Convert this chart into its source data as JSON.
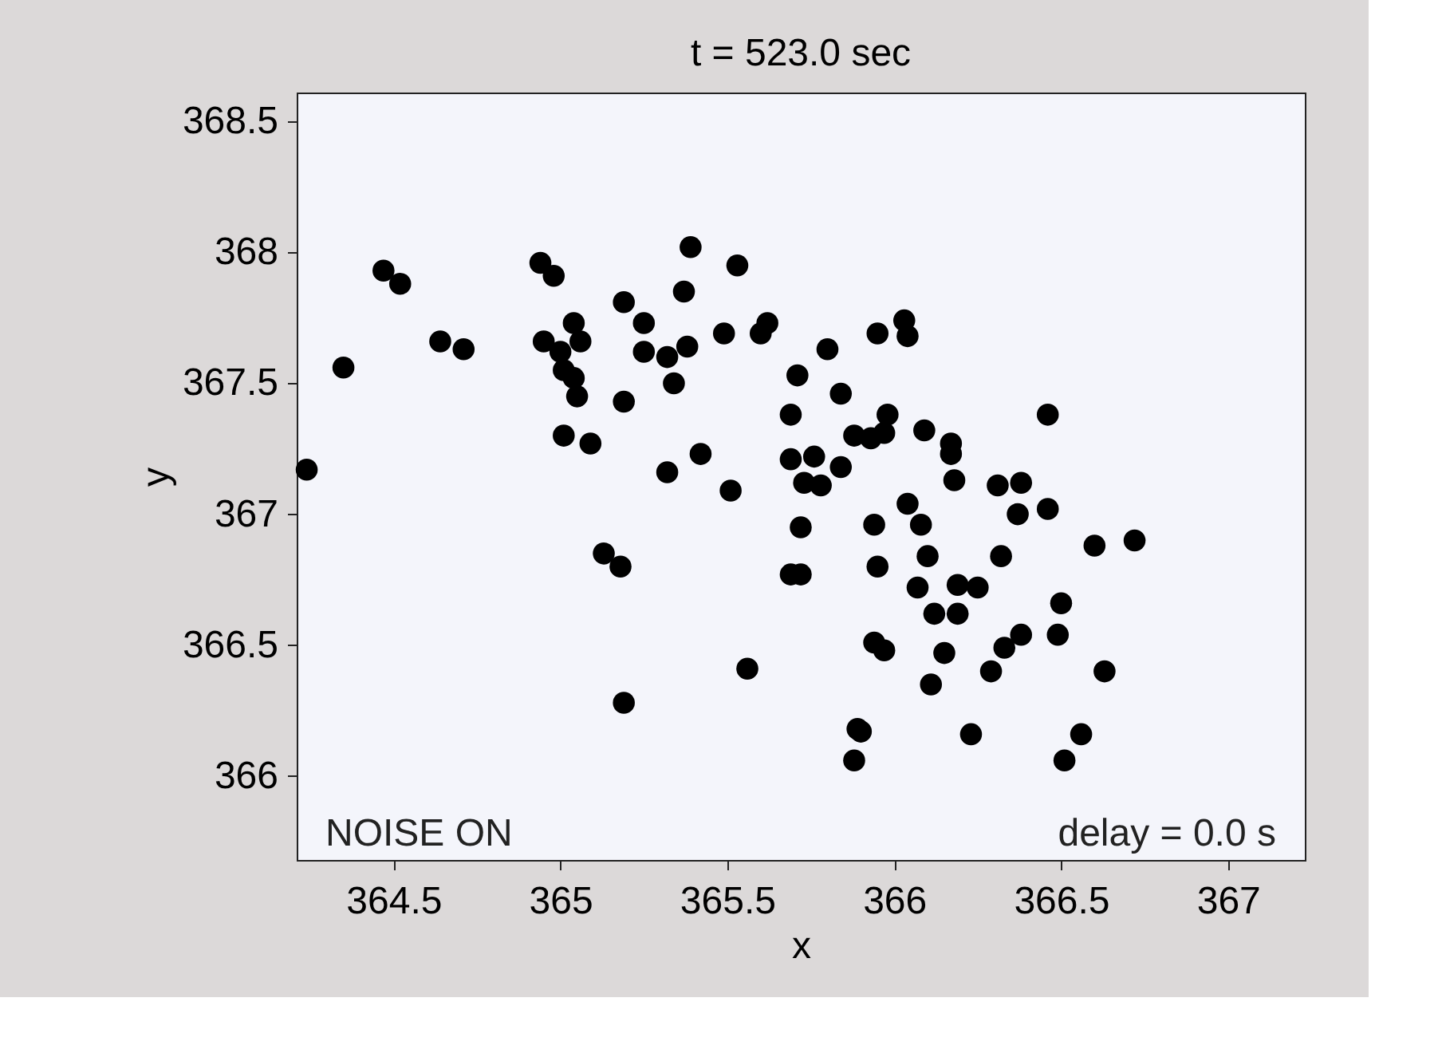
{
  "chart_data": {
    "type": "scatter",
    "title": "t = 523.0 sec",
    "xlabel": "x",
    "ylabel": "y",
    "x": [
      364.24,
      364.35,
      364.47,
      364.52,
      364.64,
      364.71,
      364.94,
      364.98,
      364.95,
      365.06,
      365.04,
      365.0,
      365.01,
      365.04,
      365.05,
      365.01,
      365.09,
      365.13,
      365.18,
      365.19,
      365.19,
      365.25,
      365.25,
      365.32,
      365.19,
      365.34,
      365.37,
      365.39,
      365.38,
      365.32,
      365.42,
      365.53,
      365.49,
      365.51,
      365.56,
      365.62,
      365.6,
      365.71,
      365.69,
      365.69,
      365.69,
      365.8,
      365.84,
      365.95,
      366.03,
      366.04,
      365.98,
      365.88,
      365.93,
      365.97,
      366.09,
      366.17,
      366.17,
      365.76,
      365.84,
      365.73,
      365.78,
      366.18,
      366.31,
      366.38,
      366.37,
      366.46,
      366.04,
      365.94,
      365.72,
      366.08,
      366.46,
      366.6,
      366.72,
      365.95,
      366.1,
      366.32,
      365.72,
      366.07,
      366.19,
      366.25,
      366.12,
      366.19,
      366.5,
      366.49,
      365.94,
      365.97,
      366.15,
      366.38,
      366.33,
      366.29,
      366.63,
      366.11,
      365.89,
      365.9,
      366.23,
      366.56,
      365.88,
      366.51
    ],
    "values": [
      367.17,
      367.56,
      367.93,
      367.88,
      367.66,
      367.63,
      367.96,
      367.91,
      367.66,
      367.66,
      367.73,
      367.62,
      367.55,
      367.52,
      367.45,
      367.3,
      367.27,
      366.85,
      366.8,
      366.28,
      367.81,
      367.73,
      367.62,
      367.6,
      367.43,
      367.5,
      367.85,
      368.02,
      367.64,
      367.16,
      367.23,
      367.95,
      367.69,
      367.09,
      366.41,
      367.73,
      367.69,
      367.53,
      367.38,
      367.21,
      366.77,
      367.63,
      367.46,
      367.69,
      367.74,
      367.68,
      367.38,
      367.3,
      367.29,
      367.31,
      367.32,
      367.27,
      367.23,
      367.22,
      367.18,
      367.12,
      367.11,
      367.13,
      367.11,
      367.12,
      367.0,
      367.02,
      367.04,
      366.96,
      366.95,
      366.96,
      367.38,
      366.88,
      366.9,
      366.8,
      366.84,
      366.84,
      366.77,
      366.72,
      366.73,
      366.72,
      366.62,
      366.62,
      366.66,
      366.54,
      366.51,
      366.48,
      366.47,
      366.54,
      366.49,
      366.4,
      366.4,
      366.35,
      366.18,
      366.17,
      366.16,
      366.16,
      366.06,
      366.06
    ],
    "color": "#000000",
    "marker": "circle",
    "xlim": [
      364.21,
      367.23
    ],
    "ylim": [
      365.68,
      368.61
    ],
    "xticks": [
      364.5,
      365,
      365.5,
      366,
      366.5,
      367
    ],
    "yticks": [
      366,
      366.5,
      367,
      367.5,
      368,
      368.5
    ],
    "grid": false,
    "annotations": [
      "NOISE ON",
      "delay = 0.0 s"
    ]
  }
}
